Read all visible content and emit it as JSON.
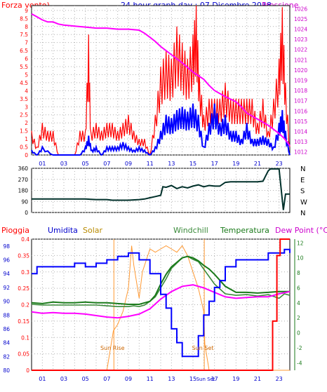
{
  "header": {
    "left_label": "Forza vento)",
    "title": "24 hour graph day : 07 Dicembre 2018",
    "right_label": "Pressione"
  },
  "colors": {
    "wind_speed": "#ff0000",
    "wind_avg": "#0000ff",
    "pressure": "#ff00ff",
    "direction": "#00302a",
    "rain": "#ff0000",
    "humidity": "#0000ff",
    "solar": "#ff9933",
    "windchill": "#3a8a3a",
    "temperature": "#1a7a1a",
    "dewpoint": "#ff00ff",
    "grid": "#b0b0b0",
    "sun_label": "#cc6600"
  },
  "hour_labels": [
    "01",
    "03",
    "05",
    "07",
    "09",
    "11",
    "13",
    "15",
    "17",
    "19",
    "21",
    "23"
  ],
  "chart_data": [
    {
      "type": "line",
      "name": "wind_pressure",
      "x_range": [
        0,
        24
      ],
      "y_left": {
        "title": "Forza vento)",
        "ticks": [
          "0",
          "0.5",
          "1",
          "1.5",
          "2",
          "2.5",
          "3",
          "3.5",
          "4",
          "4.5",
          "5",
          "5.5",
          "6",
          "6.5",
          "7",
          "7.5",
          "8",
          "8.5",
          "9"
        ],
        "range": [
          0,
          9.3
        ]
      },
      "y_right": {
        "title": "Pressione",
        "ticks": [
          "1012",
          "1013",
          "1014",
          "1015",
          "1016",
          "1017",
          "1018",
          "1019",
          "1020",
          "1021",
          "1022",
          "1023",
          "1024",
          "1025",
          "1026"
        ],
        "range": [
          1011.7,
          1026.3
        ]
      },
      "pressure": {
        "x": [
          0,
          0.5,
          1,
          1.5,
          2,
          2.5,
          3,
          4,
          5,
          6,
          7,
          8,
          9,
          10,
          10.5,
          11,
          11.5,
          12,
          12.5,
          13,
          14,
          15,
          16,
          16.5,
          17,
          18,
          19,
          19.5,
          20,
          21,
          22,
          23,
          23.5,
          24
        ],
        "y": [
          1025.5,
          1025.2,
          1024.9,
          1024.7,
          1024.7,
          1024.5,
          1024.4,
          1024.3,
          1024.2,
          1024.1,
          1024.1,
          1024.0,
          1024.0,
          1023.9,
          1023.6,
          1023.2,
          1022.8,
          1022.3,
          1021.9,
          1021.5,
          1020.7,
          1019.8,
          1019.1,
          1018.5,
          1018.0,
          1017.4,
          1016.9,
          1016.4,
          1015.8,
          1015.2,
          1014.6,
          1013.8,
          1013.3,
          1012.6
        ]
      },
      "wind_gust": {
        "x": [
          0,
          0.5,
          1,
          1.5,
          2,
          2.5,
          3,
          3.5,
          4,
          4.5,
          5,
          5.3,
          5.5,
          6,
          6.5,
          7,
          7.5,
          8,
          8.5,
          9,
          9.5,
          10,
          10.5,
          11,
          11.5,
          12,
          12.5,
          13,
          13.5,
          14,
          14.5,
          15,
          15.3,
          15.6,
          16,
          16.5,
          17,
          17.5,
          18,
          18.5,
          19,
          19.5,
          20,
          20.5,
          21,
          21.5,
          22,
          22.5,
          23,
          23.3,
          23.6,
          24
        ],
        "y": [
          1.5,
          0.5,
          2,
          1.5,
          1.5,
          0,
          0,
          0,
          0,
          1.5,
          1.5,
          7.5,
          1.5,
          2,
          1.5,
          2,
          2,
          1.5,
          2,
          2.5,
          1.5,
          1,
          1,
          0,
          2.5,
          5.5,
          6.5,
          6,
          8,
          7,
          6,
          7.5,
          9.3,
          5,
          2.5,
          3.5,
          3.5,
          3.5,
          4.5,
          3.5,
          3.5,
          3.5,
          3.5,
          3.5,
          2,
          3.5,
          1.5,
          3.5,
          6,
          9.2,
          4.5,
          0.5
        ]
      },
      "wind_avg": {
        "x": [
          0,
          0.5,
          1,
          2,
          3,
          4,
          4.5,
          5,
          5.3,
          5.6,
          6,
          6.5,
          7,
          7.5,
          8,
          8.5,
          9,
          9.5,
          10,
          10.5,
          11,
          11.5,
          12,
          12.5,
          13,
          13.5,
          14,
          14.5,
          15,
          15.5,
          16,
          16.5,
          17,
          17.5,
          18,
          18.5,
          19,
          19.5,
          20,
          20.5,
          21,
          21.5,
          22,
          22.5,
          23,
          23.3,
          23.6,
          24
        ],
        "y": [
          0.3,
          0,
          0.5,
          0,
          0,
          0,
          0,
          0.5,
          1.2,
          0.3,
          0.5,
          0,
          0.5,
          0.5,
          0.5,
          0.8,
          0.5,
          0.3,
          0.5,
          0.3,
          0,
          0.5,
          1.5,
          2.5,
          2.3,
          2.8,
          3,
          2.7,
          3.2,
          2.5,
          0.5,
          2,
          3.2,
          2,
          2.5,
          1.5,
          1.5,
          1,
          2,
          1,
          1,
          1.2,
          1,
          0.5,
          2,
          2.8,
          1.5,
          0
        ]
      }
    },
    {
      "type": "line",
      "name": "wind_direction",
      "x_range": [
        0,
        24
      ],
      "y_left": {
        "ticks": [
          "0",
          "90",
          "180",
          "270",
          "360"
        ],
        "range": [
          0,
          360
        ]
      },
      "y_right_labels": [
        "N",
        "W",
        "S",
        "E",
        "N"
      ],
      "direction": {
        "x": [
          0,
          1,
          2,
          3,
          4,
          5,
          6,
          7,
          7.5,
          8,
          9,
          10,
          10.5,
          11,
          11.5,
          12,
          12.2,
          12.5,
          13,
          13.5,
          14,
          14.5,
          15,
          15.5,
          16,
          16.5,
          17,
          17.5,
          18,
          18.5,
          19,
          20,
          21,
          21.5,
          22,
          22.2,
          22.6,
          23,
          23.4,
          23.6,
          24
        ],
        "y": [
          110,
          110,
          110,
          110,
          110,
          110,
          105,
          105,
          100,
          100,
          100,
          105,
          110,
          120,
          130,
          140,
          210,
          205,
          220,
          195,
          210,
          200,
          215,
          225,
          210,
          220,
          215,
          215,
          245,
          250,
          250,
          250,
          250,
          255,
          340,
          355,
          355,
          355,
          20,
          150,
          150
        ]
      }
    },
    {
      "type": "line",
      "name": "weather_multi",
      "x_range": [
        0,
        24
      ],
      "legend": [
        "Pioggia",
        "Umidita",
        "Solar",
        "Windchill",
        "Temperatura",
        "Dew Point (°C)"
      ],
      "y_rain": {
        "title": "Pioggia",
        "ticks": [
          "0",
          "0.05",
          "0.1",
          "0.15",
          "0.2",
          "0.25",
          "0.3",
          "0.35",
          "0.4"
        ],
        "range": [
          0,
          0.4
        ]
      },
      "y_humidity": {
        "title": "Umidita",
        "ticks": [
          "80",
          "82",
          "84",
          "86",
          "88",
          "90",
          "92",
          "94",
          "96",
          "98"
        ],
        "range": [
          80,
          99
        ]
      },
      "y_temp": {
        "title": "Dew Point (°C)",
        "ticks": [
          "-4",
          "-2",
          "0",
          "2",
          "4",
          "6",
          "8",
          "10",
          "12"
        ],
        "range": [
          -5,
          12.5
        ]
      },
      "rain": {
        "x": [
          0,
          22.4,
          22.4,
          22.8,
          22.8,
          23.1,
          23.1,
          23.9,
          23.9,
          24
        ],
        "y": [
          0,
          0,
          0.15,
          0.15,
          0.35,
          0.35,
          0.4,
          0.4,
          0.4,
          0.4
        ]
      },
      "humidity": {
        "x": [
          0,
          0.5,
          0.5,
          2,
          2,
          4,
          4,
          5,
          5,
          6,
          6,
          7,
          7,
          8,
          8,
          9,
          9,
          9.5,
          10,
          11,
          12,
          12.5,
          13,
          13.5,
          14,
          14.5,
          15,
          15.5,
          16,
          16.5,
          17,
          17.5,
          18,
          18.5,
          19,
          20,
          21,
          22,
          23,
          23.5,
          24
        ],
        "y": [
          94,
          94,
          95,
          95,
          95,
          95,
          95.5,
          95.5,
          95,
          95,
          95.5,
          95.5,
          96,
          96,
          96.5,
          96.5,
          97,
          97,
          96,
          94,
          91,
          89,
          86,
          84,
          82,
          82,
          82,
          85,
          88,
          90,
          92,
          93,
          95,
          95,
          96,
          96,
          96,
          97,
          97,
          97.5,
          97
        ]
      },
      "solar": {
        "x": [
          0,
          7,
          7.5,
          7.6,
          8,
          8.5,
          9,
          9.3,
          9.5,
          10,
          10.3,
          10.8,
          11,
          11.5,
          12,
          12.5,
          13,
          13.5,
          14,
          14.5,
          15,
          15.5,
          16,
          16.1,
          16.5,
          24
        ],
        "y": [
          0,
          0,
          0.1,
          0.12,
          0.14,
          0.18,
          0.25,
          0.38,
          0.32,
          0.22,
          0.3,
          0.35,
          0.37,
          0.36,
          0.37,
          0.38,
          0.37,
          0.36,
          0.38,
          0.35,
          0.3,
          0.25,
          0.18,
          0.08,
          0,
          0
        ]
      },
      "windchill": {
        "x": [
          0,
          1,
          2,
          3,
          4,
          5,
          6,
          7,
          8,
          9,
          9.5,
          10,
          10.5,
          11,
          11.5,
          12,
          12.5,
          13,
          13.5,
          14,
          14.5,
          15,
          15.5,
          16,
          16.5,
          17,
          18,
          19,
          20,
          21,
          22,
          23,
          23.5,
          24
        ],
        "y": [
          3.8,
          3.7,
          3.7,
          3.7,
          3.7,
          3.7,
          3.7,
          3.6,
          3.5,
          3.5,
          3.6,
          3.5,
          3.7,
          4.2,
          4.8,
          6,
          7.2,
          8.6,
          9.3,
          10,
          10.2,
          9.8,
          9.5,
          8.5,
          7.5,
          6.5,
          5.2,
          5.0,
          5.1,
          4.9,
          5.1,
          4.6,
          5.2,
          5.0
        ]
      },
      "temperature": {
        "x": [
          0,
          1,
          2,
          3,
          4,
          5,
          6,
          7,
          8,
          9,
          10,
          11,
          11.5,
          12,
          12.5,
          13,
          13.5,
          14,
          14.5,
          15,
          15.5,
          16,
          16.5,
          17,
          18,
          19,
          20,
          21,
          22,
          23,
          24
        ],
        "y": [
          4,
          3.9,
          4.1,
          4.0,
          4.0,
          4.1,
          4.0,
          4.0,
          3.9,
          3.8,
          3.8,
          4.2,
          5.0,
          6.5,
          7.8,
          8.8,
          9.4,
          10,
          10.2,
          10,
          9.6,
          9,
          8.5,
          7.8,
          6.2,
          5.4,
          5.4,
          5.3,
          5.4,
          5.5,
          5.5
        ]
      },
      "dewpoint": {
        "x": [
          0,
          1,
          2,
          3,
          4,
          5,
          6,
          7,
          8,
          9,
          10,
          11,
          12,
          13,
          14,
          15,
          16,
          17,
          18,
          19,
          20,
          21,
          22,
          23,
          24
        ],
        "y": [
          2.8,
          2.6,
          2.7,
          2.6,
          2.6,
          2.5,
          2.3,
          2.1,
          2.0,
          2.2,
          2.5,
          3.2,
          4.5,
          5.5,
          6.2,
          6.4,
          6.0,
          5.4,
          4.8,
          4.6,
          4.7,
          4.8,
          4.8,
          5.2,
          5.5
        ]
      },
      "annotations": {
        "sun_rise": "Sun Rise",
        "sun_set": "Sun Set"
      },
      "sun_rise_hour": 7.65,
      "sun_set_hour": 16.05,
      "x_labels": [
        "01",
        "03",
        "05",
        "07",
        "09",
        "11",
        "13",
        "15",
        "Sun Set",
        "17",
        "19",
        "21",
        "23"
      ]
    }
  ]
}
